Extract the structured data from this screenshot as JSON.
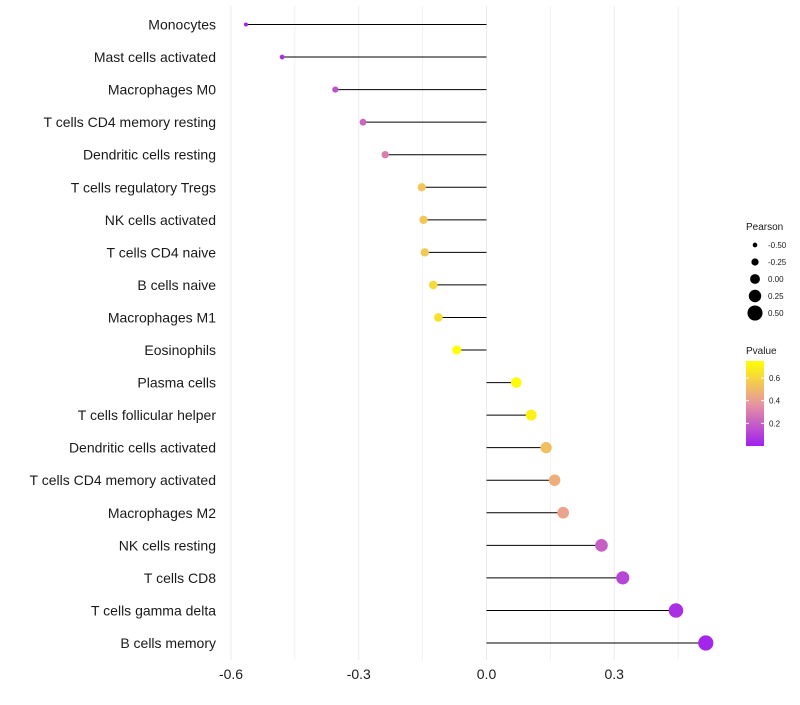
{
  "chart_data": {
    "type": "lollipop",
    "categories": [
      "Monocytes",
      "Mast cells activated",
      "Macrophages M0",
      "T cells CD4 memory resting",
      "Dendritic cells resting",
      "T cells regulatory  Tregs ",
      "NK cells activated",
      "T cells CD4 naive",
      "B cells naive",
      "Macrophages M1",
      "Eosinophils",
      "Plasma cells",
      "T cells follicular helper",
      "Dendritic cells activated",
      "T cells CD4 memory activated",
      "Macrophages M2",
      "NK cells resting",
      "T cells CD8",
      "T cells gamma delta",
      "B cells memory"
    ],
    "values": [
      -0.565,
      -0.48,
      -0.355,
      -0.29,
      -0.238,
      -0.152,
      -0.148,
      -0.145,
      -0.125,
      -0.113,
      -0.07,
      0.07,
      0.105,
      0.14,
      0.16,
      0.18,
      0.27,
      0.32,
      0.445,
      0.515
    ],
    "pvalues": [
      0.01,
      0.05,
      0.15,
      0.22,
      0.3,
      0.55,
      0.55,
      0.55,
      0.62,
      0.64,
      0.75,
      0.74,
      0.7,
      0.52,
      0.46,
      0.42,
      0.2,
      0.12,
      0.05,
      0.02
    ],
    "xlim": [
      -0.6,
      0.52
    ],
    "xticks": [
      "-0.6",
      "-0.3",
      "0.0",
      "0.3"
    ],
    "xtick_values": [
      -0.6,
      -0.3,
      0.0,
      0.3
    ],
    "grid": true,
    "legend_position": "right",
    "legend": {
      "size_title": "Pearson",
      "size_labels": [
        "-0.50",
        "-0.25",
        "0.00",
        "0.25",
        "0.50"
      ],
      "size_values": [
        -0.5,
        -0.25,
        0.0,
        0.25,
        0.5
      ],
      "color_title": "Pvalue",
      "color_labels": [
        "0.6",
        "0.4",
        "0.2"
      ],
      "color_values": [
        0.6,
        0.4,
        0.2
      ]
    },
    "colors": {
      "low": "#a020f0",
      "mid": "#e896a0",
      "high": "#ffff00",
      "stem": "#000000",
      "grid": "#ebebeb"
    }
  }
}
